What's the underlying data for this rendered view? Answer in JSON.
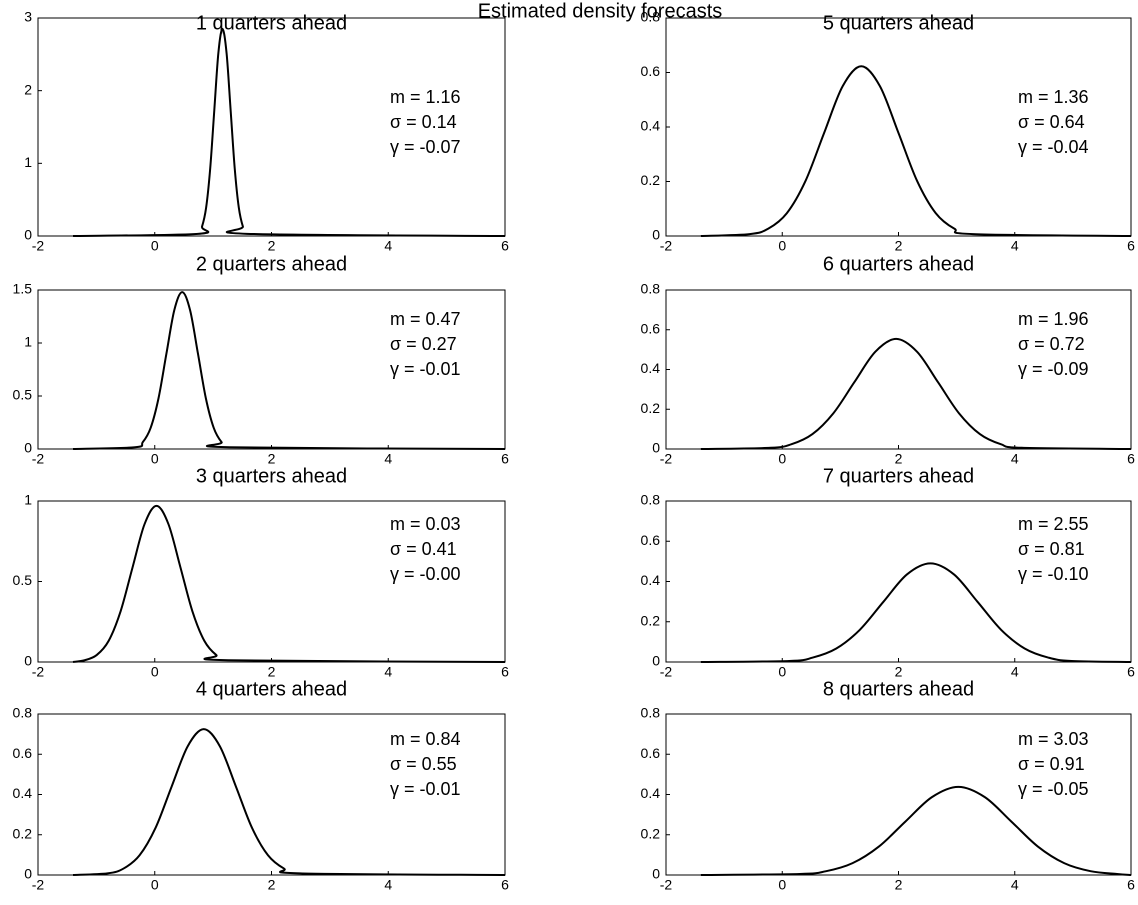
{
  "title": "Estimated density forecasts",
  "chart_data": [
    {
      "type": "line",
      "title": "1 quarters ahead",
      "annotations": [
        "m = 1.16",
        "σ = 0.14",
        "γ = -0.07"
      ],
      "color": "#000000",
      "x": [
        -1.4,
        0.74,
        0.81,
        0.88,
        0.95,
        1.02,
        1.09,
        1.16,
        1.23,
        1.3,
        1.37,
        1.44,
        1.51,
        1.58,
        6
      ],
      "values": [
        0,
        0.03,
        0.13,
        0.39,
        0.93,
        1.73,
        2.52,
        2.85,
        2.52,
        1.73,
        0.93,
        0.39,
        0.13,
        0.03,
        0
      ],
      "xlim": [
        -2,
        6
      ],
      "ylim": [
        0,
        3
      ],
      "xticks": [
        -2,
        0,
        2,
        4,
        6
      ],
      "yticks": [
        0,
        1,
        2,
        3
      ]
    },
    {
      "type": "line",
      "title": "2 quarters ahead",
      "annotations": [
        "m = 0.47",
        "σ = 0.27",
        "γ = -0.01"
      ],
      "color": "#000000",
      "x": [
        -1.4,
        -0.34,
        -0.205,
        -0.07,
        0.065,
        0.2,
        0.335,
        0.47,
        0.605,
        0.74,
        0.875,
        1.01,
        1.145,
        1.28,
        6
      ],
      "values": [
        0,
        0.016,
        0.065,
        0.2,
        0.48,
        0.9,
        1.31,
        1.48,
        1.31,
        0.9,
        0.48,
        0.2,
        0.065,
        0.016,
        0
      ],
      "xlim": [
        -2,
        6
      ],
      "ylim": [
        0,
        1.5
      ],
      "xticks": [
        -2,
        0,
        2,
        4,
        6
      ],
      "yticks": [
        0,
        0.5,
        1,
        1.5
      ]
    },
    {
      "type": "line",
      "title": "3 quarters ahead",
      "annotations": [
        "m = 0.03",
        "σ = 0.41",
        "γ = -0.00"
      ],
      "color": "#000000",
      "x": [
        -1.4,
        -1.2,
        -0.995,
        -0.79,
        -0.585,
        -0.38,
        -0.175,
        0.03,
        0.235,
        0.44,
        0.645,
        0.85,
        1.055,
        1.26,
        6
      ],
      "values": [
        0,
        0.011,
        0.043,
        0.131,
        0.315,
        0.588,
        0.856,
        0.97,
        0.856,
        0.588,
        0.315,
        0.131,
        0.043,
        0.011,
        0
      ],
      "xlim": [
        -2,
        6
      ],
      "ylim": [
        0,
        1
      ],
      "xticks": [
        -2,
        0,
        2,
        4,
        6
      ],
      "yticks": [
        0,
        0.5,
        1
      ]
    },
    {
      "type": "line",
      "title": "4 quarters ahead",
      "annotations": [
        "m = 0.84",
        "σ = 0.55",
        "γ = -0.01"
      ],
      "color": "#000000",
      "x": [
        -1.4,
        -0.81,
        -0.535,
        -0.26,
        0.015,
        0.29,
        0.565,
        0.84,
        1.115,
        1.39,
        1.665,
        1.94,
        2.215,
        2.49,
        6
      ],
      "values": [
        0,
        0.008,
        0.032,
        0.098,
        0.235,
        0.44,
        0.64,
        0.725,
        0.64,
        0.44,
        0.235,
        0.098,
        0.032,
        0.008,
        0
      ],
      "xlim": [
        -2,
        6
      ],
      "ylim": [
        0,
        0.8
      ],
      "xticks": [
        -2,
        0,
        2,
        4,
        6
      ],
      "yticks": [
        0,
        0.2,
        0.4,
        0.6,
        0.8
      ]
    },
    {
      "type": "line",
      "title": "5 quarters ahead",
      "annotations": [
        "m = 1.36",
        "σ = 0.64",
        "γ = -0.04"
      ],
      "color": "#000000",
      "x": [
        -1.4,
        -0.56,
        -0.24,
        0.08,
        0.4,
        0.72,
        1.04,
        1.36,
        1.68,
        2.0,
        2.32,
        2.64,
        2.96,
        3.28,
        6
      ],
      "values": [
        0,
        0.007,
        0.027,
        0.084,
        0.202,
        0.378,
        0.55,
        0.623,
        0.55,
        0.378,
        0.202,
        0.084,
        0.027,
        0.007,
        0
      ],
      "xlim": [
        -2,
        6
      ],
      "ylim": [
        0,
        0.8
      ],
      "xticks": [
        -2,
        0,
        2,
        4,
        6
      ],
      "yticks": [
        0,
        0.2,
        0.4,
        0.6,
        0.8
      ]
    },
    {
      "type": "line",
      "title": "6 quarters ahead",
      "annotations": [
        "m = 1.96",
        "σ = 0.72",
        "γ = -0.09"
      ],
      "color": "#000000",
      "x": [
        -1.4,
        -0.2,
        0.16,
        0.52,
        0.88,
        1.24,
        1.6,
        1.96,
        2.32,
        2.68,
        3.04,
        3.4,
        3.76,
        4.12,
        6
      ],
      "values": [
        0,
        0.006,
        0.024,
        0.075,
        0.18,
        0.336,
        0.489,
        0.554,
        0.489,
        0.336,
        0.18,
        0.075,
        0.024,
        0.006,
        0
      ],
      "xlim": [
        -2,
        6
      ],
      "ylim": [
        0,
        0.8
      ],
      "xticks": [
        -2,
        0,
        2,
        4,
        6
      ],
      "yticks": [
        0,
        0.2,
        0.4,
        0.6,
        0.8
      ]
    },
    {
      "type": "line",
      "title": "7 quarters ahead",
      "annotations": [
        "m = 2.55",
        "σ = 0.81",
        "γ = -0.10"
      ],
      "color": "#000000",
      "x": [
        -1.4,
        0.12,
        0.525,
        0.93,
        1.335,
        1.74,
        2.145,
        2.55,
        2.955,
        3.36,
        3.765,
        4.17,
        4.575,
        4.98,
        6
      ],
      "values": [
        0,
        0.005,
        0.022,
        0.067,
        0.16,
        0.299,
        0.435,
        0.49,
        0.435,
        0.299,
        0.16,
        0.067,
        0.022,
        0.005,
        0
      ],
      "xlim": [
        -2,
        6
      ],
      "ylim": [
        0,
        0.8
      ],
      "xticks": [
        -2,
        0,
        2,
        4,
        6
      ],
      "yticks": [
        0,
        0.2,
        0.4,
        0.6,
        0.8
      ]
    },
    {
      "type": "line",
      "title": "8 quarters ahead",
      "annotations": [
        "m = 3.03",
        "σ = 0.91",
        "γ = -0.05"
      ],
      "color": "#000000",
      "x": [
        -1.4,
        0.3,
        0.755,
        1.21,
        1.665,
        2.12,
        2.575,
        3.03,
        3.485,
        3.94,
        4.395,
        4.85,
        5.305,
        5.76,
        6
      ],
      "values": [
        0,
        0.005,
        0.019,
        0.059,
        0.142,
        0.266,
        0.387,
        0.438,
        0.387,
        0.266,
        0.142,
        0.059,
        0.019,
        0.005,
        0
      ],
      "xlim": [
        -2,
        6
      ],
      "ylim": [
        0,
        0.8
      ],
      "xticks": [
        -2,
        0,
        2,
        4,
        6
      ],
      "yticks": [
        0,
        0.2,
        0.4,
        0.6,
        0.8
      ]
    }
  ]
}
